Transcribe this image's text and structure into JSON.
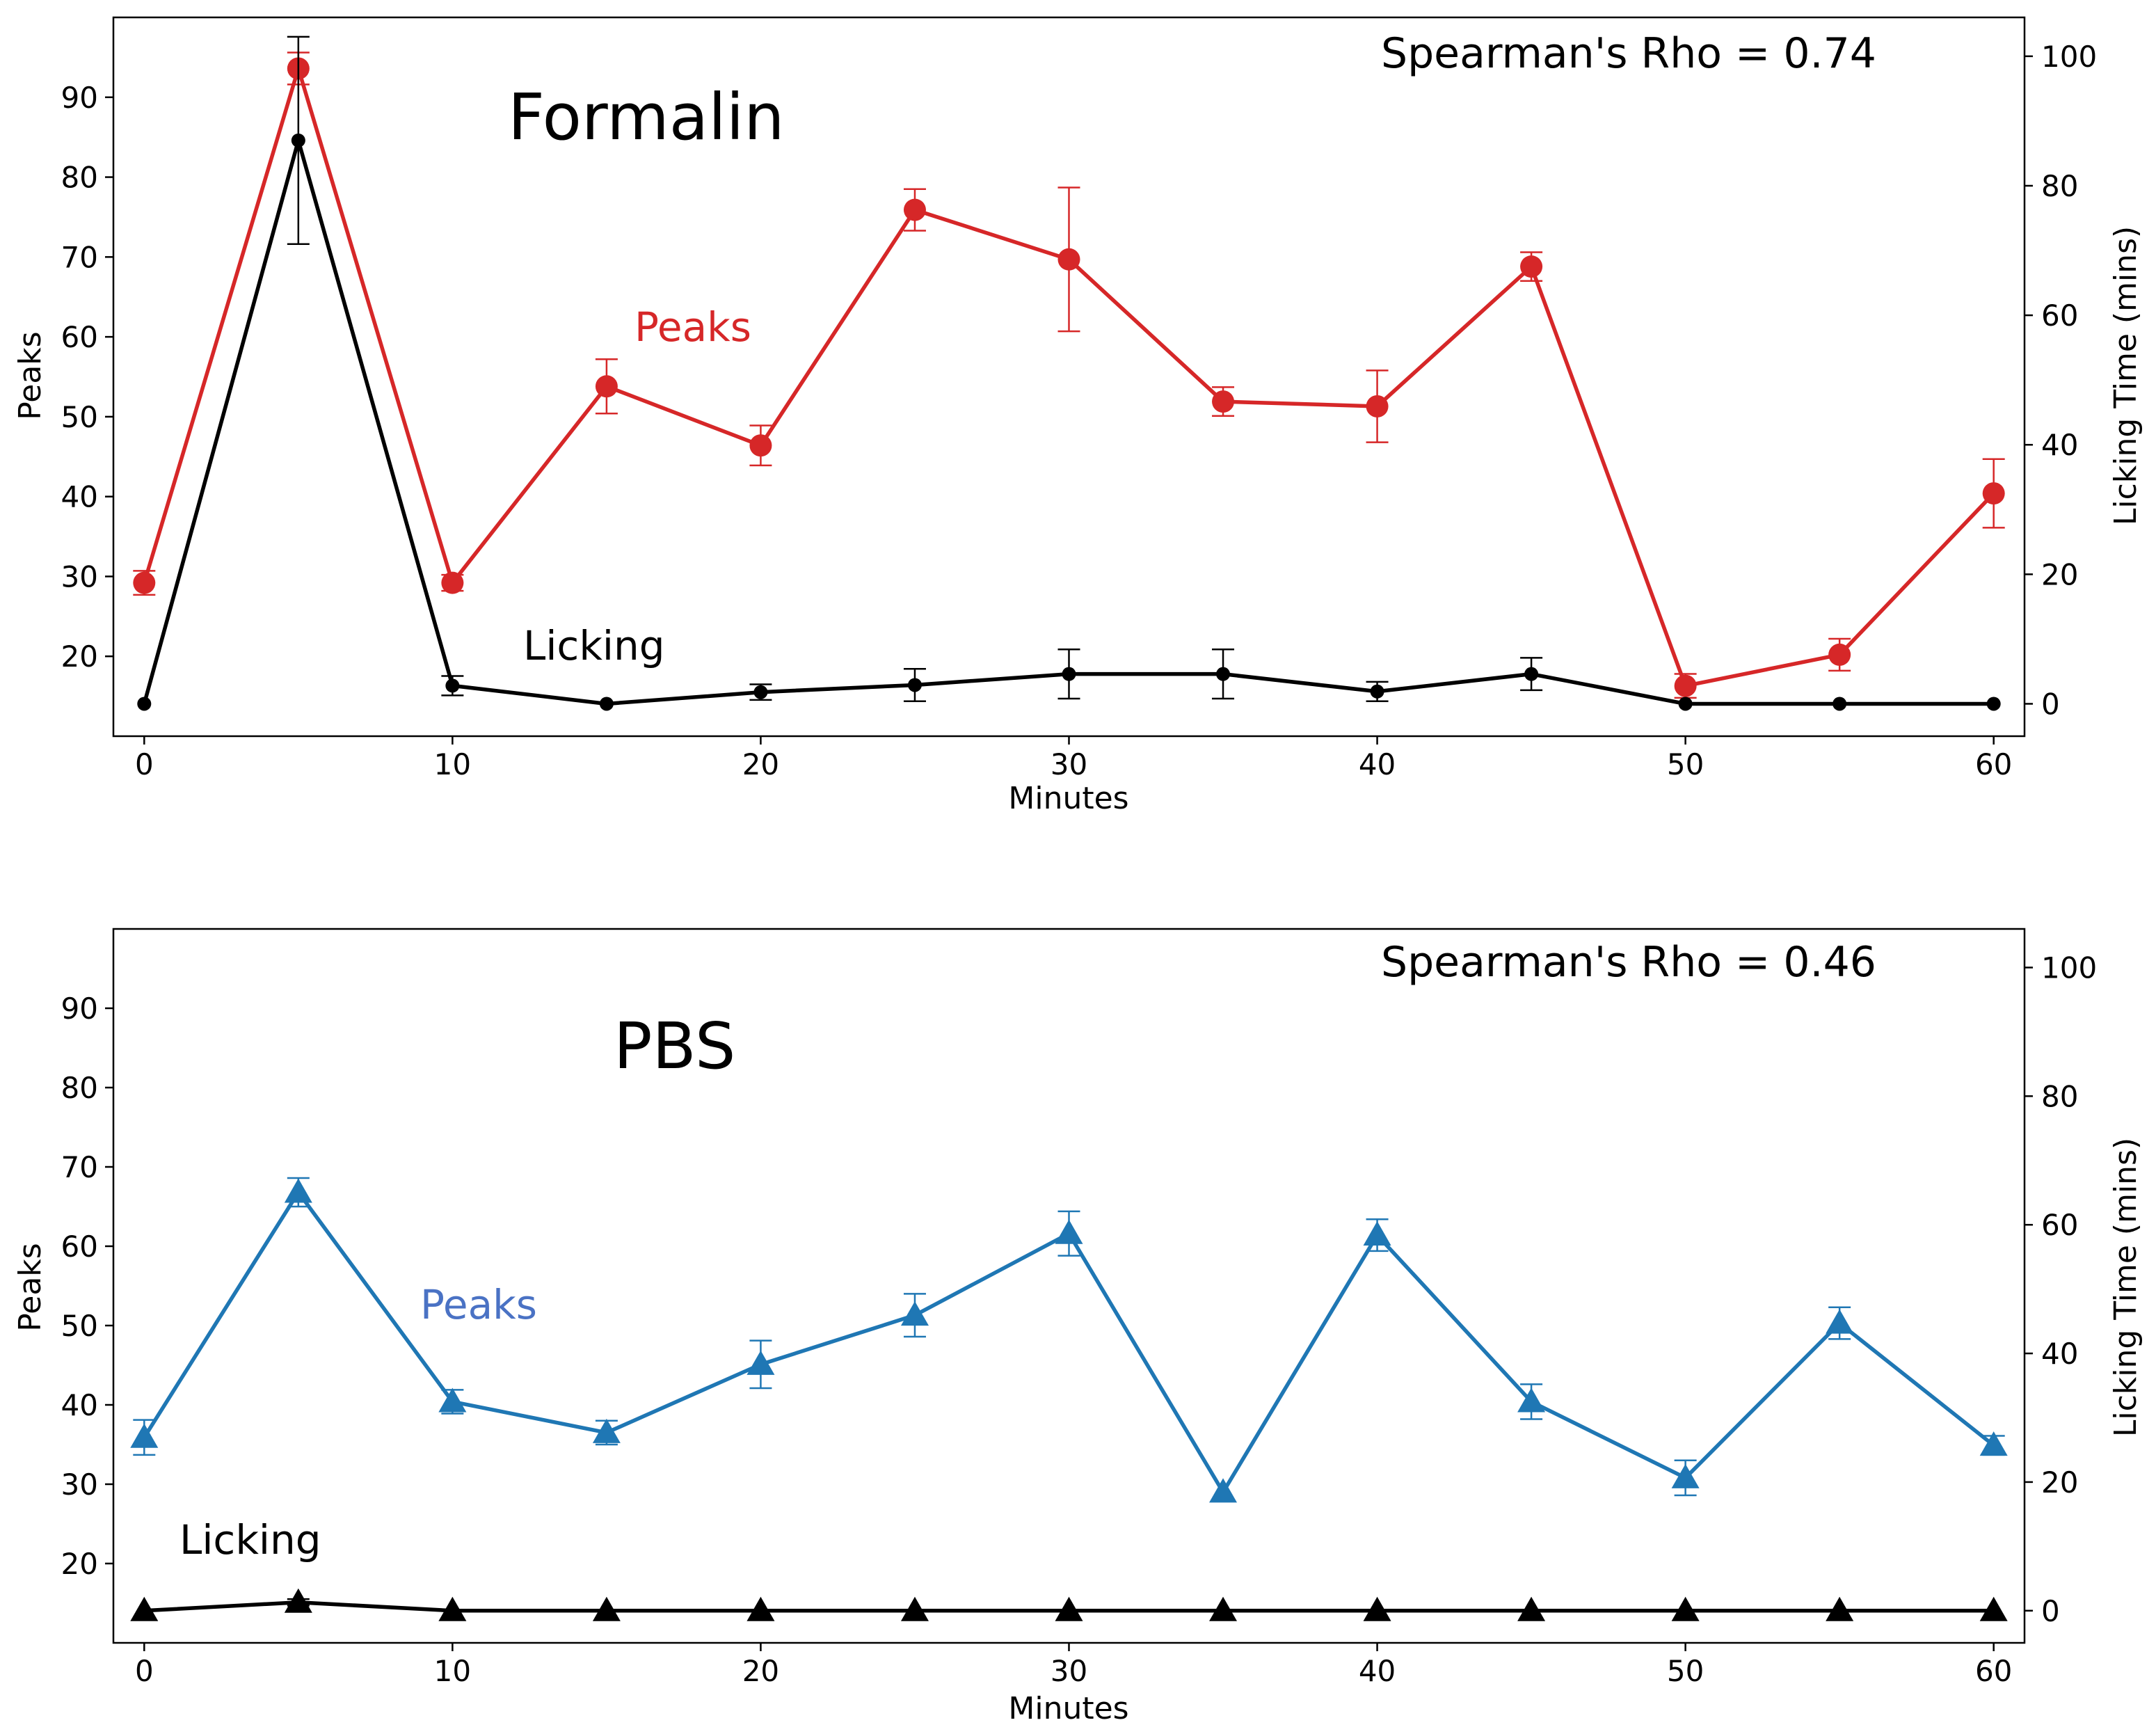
{
  "colors": {
    "formalin_peaks": "#d62728",
    "pbs_peaks": "#1f77b4",
    "licking": "#000000",
    "pbs_peaks_label": "#4a72c4"
  },
  "chart_data": [
    {
      "type": "line",
      "title": "Formalin",
      "annotation": "Spearman's Rho = 0.74",
      "xlabel": "Minutes",
      "ylabel": "Peaks",
      "y2label": "Licking Time (mins)",
      "xlim": [
        -1,
        61
      ],
      "ylim": [
        10,
        100
      ],
      "y2lim": [
        -5,
        106
      ],
      "x_ticks": [
        0,
        10,
        20,
        30,
        40,
        50,
        60
      ],
      "y_ticks": [
        20,
        30,
        40,
        50,
        60,
        70,
        80,
        90
      ],
      "y2_ticks": [
        0,
        20,
        40,
        60,
        80,
        100
      ],
      "x": [
        0,
        5,
        10,
        15,
        20,
        25,
        30,
        35,
        40,
        45,
        50,
        55,
        60
      ],
      "series": [
        {
          "name": "Peaks",
          "axis": "left",
          "marker": "circle",
          "values": [
            29.2,
            93.6,
            29.2,
            53.8,
            46.4,
            75.9,
            69.7,
            51.9,
            51.3,
            68.8,
            16.3,
            20.2,
            40.4
          ],
          "errors": [
            1.5,
            2.0,
            1.0,
            3.4,
            2.5,
            2.6,
            9.0,
            1.8,
            4.5,
            1.8,
            1.5,
            2.0,
            4.3
          ]
        },
        {
          "name": "Licking",
          "axis": "right",
          "marker": "circle-small",
          "values": [
            0,
            87,
            2.8,
            0,
            1.8,
            2.9,
            4.6,
            4.6,
            1.9,
            4.6,
            0,
            0,
            0
          ],
          "errors": [
            0,
            16,
            1.5,
            0,
            1.2,
            2.5,
            3.8,
            3.8,
            1.5,
            2.5,
            0,
            0,
            0
          ]
        }
      ],
      "labels": {
        "peaks": "Peaks",
        "licking": "Licking"
      }
    },
    {
      "type": "line",
      "title": "PBS",
      "annotation": "Spearman's Rho = 0.46",
      "xlabel": "Minutes",
      "ylabel": "Peaks",
      "y2label": "Licking Time (mins)",
      "xlim": [
        -1,
        61
      ],
      "ylim": [
        10,
        100
      ],
      "y2lim": [
        -5,
        106
      ],
      "x_ticks": [
        0,
        10,
        20,
        30,
        40,
        50,
        60
      ],
      "y_ticks": [
        20,
        30,
        40,
        50,
        60,
        70,
        80,
        90
      ],
      "y2_ticks": [
        0,
        20,
        40,
        60,
        80,
        100
      ],
      "x": [
        0,
        5,
        10,
        15,
        20,
        25,
        30,
        35,
        40,
        45,
        50,
        55,
        60
      ],
      "series": [
        {
          "name": "Peaks",
          "axis": "left",
          "marker": "triangle",
          "values": [
            35.9,
            66.8,
            40.4,
            36.5,
            45.1,
            51.3,
            61.6,
            29.0,
            61.4,
            40.4,
            30.8,
            50.3,
            34.9
          ],
          "errors": [
            2.2,
            1.8,
            1.5,
            1.5,
            3.0,
            2.7,
            2.8,
            0,
            2.0,
            2.2,
            2.2,
            2.0,
            1.2
          ]
        },
        {
          "name": "Licking",
          "axis": "right",
          "marker": "triangle",
          "values": [
            0,
            1.3,
            0,
            0,
            0,
            0,
            0,
            0,
            0,
            0,
            0,
            0,
            0
          ],
          "errors": [
            0,
            0.5,
            0,
            0,
            0,
            0,
            0,
            0,
            0,
            0,
            0,
            0,
            0
          ]
        }
      ],
      "labels": {
        "peaks": "Peaks",
        "licking": "Licking"
      }
    }
  ]
}
